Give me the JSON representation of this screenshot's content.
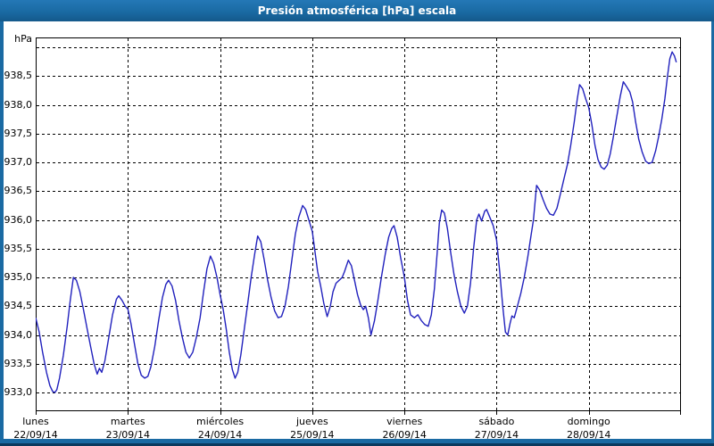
{
  "window": {
    "title": "Presión atmosférica [hPa] escala"
  },
  "colors": {
    "titlebar": "#1a6aa3",
    "titlebar_text": "#ffffff",
    "frame": "#1a6aa3",
    "frame_dark_edge": "#0b3a5e",
    "plot_line": "#2121bd",
    "grid": "#000000",
    "background": "#ffffff"
  },
  "chart_data": {
    "type": "line",
    "title": "Presión atmosférica [hPa] escala",
    "grid": "dashed, on",
    "legend": "none",
    "y_axis": {
      "unit": "hPa",
      "ylim": [
        932.68,
        939.17
      ],
      "tick_step": 0.5,
      "ticks": [
        {
          "value": 939.0,
          "label": ""
        },
        {
          "value": 938.5,
          "label": "938,5"
        },
        {
          "value": 938.0,
          "label": "938,0"
        },
        {
          "value": 937.5,
          "label": "937,5"
        },
        {
          "value": 937.0,
          "label": "937,0"
        },
        {
          "value": 936.5,
          "label": "936,5"
        },
        {
          "value": 936.0,
          "label": "936,0"
        },
        {
          "value": 935.5,
          "label": "935,5"
        },
        {
          "value": 935.0,
          "label": "935,0"
        },
        {
          "value": 934.5,
          "label": "934,5"
        },
        {
          "value": 934.0,
          "label": "934,0"
        },
        {
          "value": 933.5,
          "label": "933,5"
        },
        {
          "value": 933.0,
          "label": "933,0"
        }
      ]
    },
    "x_axis": {
      "hours_total": 168,
      "days": [
        {
          "name": "lunes",
          "date": "22/09/14"
        },
        {
          "name": "martes",
          "date": "23/09/14"
        },
        {
          "name": "miércoles",
          "date": "24/09/14"
        },
        {
          "name": "jueves",
          "date": "25/09/14"
        },
        {
          "name": "viernes",
          "date": "26/09/14"
        },
        {
          "name": "sábado",
          "date": "27/09/14"
        },
        {
          "name": "domingo",
          "date": "28/09/14"
        }
      ]
    },
    "series": [
      {
        "name": "Presión atmosférica",
        "units": "hPa",
        "points_format": "[hours_since_mon_00h, hPa]",
        "points": [
          [
            0,
            934.3
          ],
          [
            0.9,
            934.05
          ],
          [
            1.8,
            933.7
          ],
          [
            2.8,
            933.35
          ],
          [
            3.7,
            933.12
          ],
          [
            4.4,
            933.02
          ],
          [
            5,
            933.0
          ],
          [
            5.5,
            933.05
          ],
          [
            6.2,
            933.25
          ],
          [
            7.2,
            933.65
          ],
          [
            8.2,
            934.15
          ],
          [
            9,
            934.6
          ],
          [
            9.8,
            935.0
          ],
          [
            10.6,
            934.95
          ],
          [
            11.5,
            934.75
          ],
          [
            12.4,
            934.45
          ],
          [
            13.4,
            934.1
          ],
          [
            14.3,
            933.8
          ],
          [
            15.2,
            933.5
          ],
          [
            16,
            933.32
          ],
          [
            16.6,
            933.42
          ],
          [
            17.2,
            933.35
          ],
          [
            18,
            933.55
          ],
          [
            19,
            933.95
          ],
          [
            20,
            934.35
          ],
          [
            21,
            934.62
          ],
          [
            21.6,
            934.68
          ],
          [
            22.5,
            934.6
          ],
          [
            23.3,
            934.5
          ],
          [
            24,
            934.45
          ],
          [
            24.8,
            934.2
          ],
          [
            25.7,
            933.85
          ],
          [
            26.6,
            933.5
          ],
          [
            27.5,
            933.3
          ],
          [
            28.4,
            933.25
          ],
          [
            29.2,
            933.28
          ],
          [
            30,
            933.45
          ],
          [
            31,
            933.8
          ],
          [
            32,
            934.25
          ],
          [
            33,
            934.65
          ],
          [
            33.9,
            934.88
          ],
          [
            34.6,
            934.95
          ],
          [
            35.5,
            934.85
          ],
          [
            36.4,
            934.6
          ],
          [
            37.3,
            934.25
          ],
          [
            38.2,
            933.95
          ],
          [
            39.1,
            933.7
          ],
          [
            40,
            933.6
          ],
          [
            40.9,
            933.7
          ],
          [
            41.8,
            933.95
          ],
          [
            42.8,
            934.3
          ],
          [
            43.7,
            934.75
          ],
          [
            44.6,
            935.15
          ],
          [
            45.5,
            935.37
          ],
          [
            46.3,
            935.25
          ],
          [
            47.2,
            935.0
          ],
          [
            48,
            934.7
          ],
          [
            48.8,
            934.45
          ],
          [
            49.6,
            934.1
          ],
          [
            50.4,
            933.7
          ],
          [
            51.2,
            933.4
          ],
          [
            51.9,
            933.25
          ],
          [
            52.6,
            933.35
          ],
          [
            53.4,
            933.65
          ],
          [
            54.3,
            934.1
          ],
          [
            55.2,
            934.55
          ],
          [
            56.1,
            935.0
          ],
          [
            57,
            935.4
          ],
          [
            57.8,
            935.72
          ],
          [
            58.6,
            935.62
          ],
          [
            59.5,
            935.3
          ],
          [
            60.4,
            934.95
          ],
          [
            61.3,
            934.65
          ],
          [
            62.2,
            934.42
          ],
          [
            63.1,
            934.3
          ],
          [
            64,
            934.32
          ],
          [
            64.9,
            934.5
          ],
          [
            65.8,
            934.85
          ],
          [
            66.7,
            935.3
          ],
          [
            67.6,
            935.75
          ],
          [
            68.5,
            936.05
          ],
          [
            69.5,
            936.25
          ],
          [
            70.3,
            936.18
          ],
          [
            71.2,
            935.98
          ],
          [
            72,
            935.8
          ],
          [
            72.7,
            935.45
          ],
          [
            73.4,
            935.1
          ],
          [
            74.2,
            934.85
          ],
          [
            75,
            934.55
          ],
          [
            75.9,
            934.32
          ],
          [
            76.7,
            934.5
          ],
          [
            77.4,
            934.75
          ],
          [
            78.2,
            934.9
          ],
          [
            79,
            934.95
          ],
          [
            79.8,
            935.0
          ],
          [
            80.4,
            935.1
          ],
          [
            81.4,
            935.3
          ],
          [
            82.2,
            935.2
          ],
          [
            83,
            934.95
          ],
          [
            83.8,
            934.7
          ],
          [
            84.6,
            934.52
          ],
          [
            85.3,
            934.44
          ],
          [
            85.9,
            934.5
          ],
          [
            86.6,
            934.3
          ],
          [
            87.3,
            934.0
          ],
          [
            88.2,
            934.25
          ],
          [
            89.1,
            934.6
          ],
          [
            90,
            935.0
          ],
          [
            91,
            935.4
          ],
          [
            91.9,
            935.7
          ],
          [
            92.7,
            935.85
          ],
          [
            93.3,
            935.9
          ],
          [
            94.1,
            935.7
          ],
          [
            95,
            935.35
          ],
          [
            96,
            935.0
          ],
          [
            96.8,
            934.6
          ],
          [
            97.6,
            934.35
          ],
          [
            98.6,
            934.3
          ],
          [
            99.5,
            934.35
          ],
          [
            100.4,
            934.25
          ],
          [
            101.3,
            934.18
          ],
          [
            102.2,
            934.15
          ],
          [
            103,
            934.35
          ],
          [
            103.8,
            934.8
          ],
          [
            104.5,
            935.4
          ],
          [
            105.1,
            935.95
          ],
          [
            105.7,
            936.17
          ],
          [
            106.4,
            936.12
          ],
          [
            107.2,
            935.85
          ],
          [
            108,
            935.45
          ],
          [
            108.9,
            935.05
          ],
          [
            109.8,
            934.75
          ],
          [
            110.7,
            934.5
          ],
          [
            111.6,
            934.38
          ],
          [
            112.4,
            934.5
          ],
          [
            113.2,
            934.9
          ],
          [
            114,
            935.5
          ],
          [
            114.8,
            936.0
          ],
          [
            115.4,
            936.1
          ],
          [
            116.1,
            935.98
          ],
          [
            116.9,
            936.15
          ],
          [
            117.4,
            936.18
          ],
          [
            118.2,
            936.05
          ],
          [
            119.1,
            935.9
          ],
          [
            120,
            935.65
          ],
          [
            120.8,
            935.1
          ],
          [
            121.6,
            934.5
          ],
          [
            122.3,
            934.05
          ],
          [
            122.9,
            934.0
          ],
          [
            123.5,
            934.2
          ],
          [
            124,
            934.33
          ],
          [
            124.6,
            934.3
          ],
          [
            125.4,
            934.5
          ],
          [
            126.3,
            934.72
          ],
          [
            127.2,
            935.0
          ],
          [
            128.1,
            935.35
          ],
          [
            129,
            935.75
          ],
          [
            129.6,
            936.0
          ],
          [
            130.4,
            936.6
          ],
          [
            131.2,
            936.52
          ],
          [
            132.1,
            936.35
          ],
          [
            133,
            936.2
          ],
          [
            133.9,
            936.1
          ],
          [
            134.8,
            936.08
          ],
          [
            135.7,
            936.2
          ],
          [
            136.6,
            936.45
          ],
          [
            137.5,
            936.7
          ],
          [
            138.4,
            936.95
          ],
          [
            139.3,
            937.3
          ],
          [
            140.2,
            937.7
          ],
          [
            141,
            938.1
          ],
          [
            141.6,
            938.35
          ],
          [
            142.4,
            938.28
          ],
          [
            143.2,
            938.1
          ],
          [
            144,
            937.95
          ],
          [
            144.8,
            937.65
          ],
          [
            145.6,
            937.3
          ],
          [
            146.4,
            937.05
          ],
          [
            147.2,
            936.92
          ],
          [
            148,
            936.88
          ],
          [
            148.8,
            936.95
          ],
          [
            149.6,
            937.15
          ],
          [
            150.4,
            937.45
          ],
          [
            151.3,
            937.8
          ],
          [
            152.2,
            938.15
          ],
          [
            153,
            938.4
          ],
          [
            153.8,
            938.32
          ],
          [
            154.7,
            938.22
          ],
          [
            155.4,
            938.05
          ],
          [
            156.2,
            937.7
          ],
          [
            157,
            937.4
          ],
          [
            157.9,
            937.18
          ],
          [
            158.8,
            937.02
          ],
          [
            159.6,
            936.98
          ],
          [
            160.5,
            937.0
          ],
          [
            161.4,
            937.2
          ],
          [
            162.2,
            937.45
          ],
          [
            163,
            937.75
          ],
          [
            163.8,
            938.1
          ],
          [
            164.5,
            938.5
          ],
          [
            165.1,
            938.8
          ],
          [
            165.7,
            938.92
          ],
          [
            166.3,
            938.85
          ],
          [
            166.8,
            938.74
          ]
        ]
      }
    ]
  }
}
